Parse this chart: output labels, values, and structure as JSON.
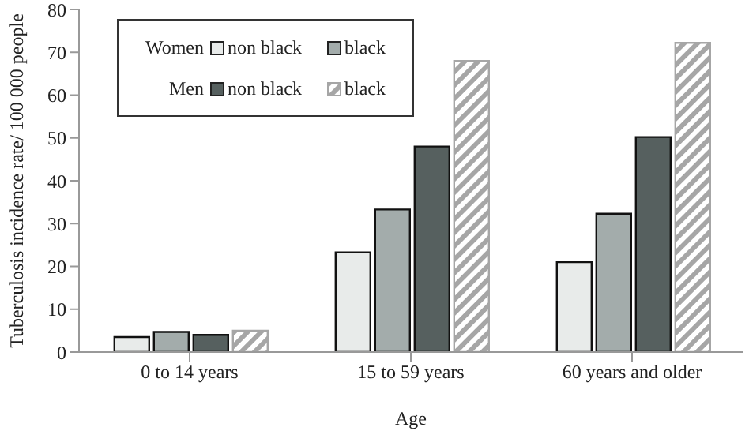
{
  "chart_data": {
    "type": "bar",
    "xlabel": "Age",
    "ylabel": "Tuberculosis incidence rate/ 100 000 people",
    "categories": [
      "0 to 14 years",
      "15 to 59 years",
      "60 years and older"
    ],
    "series": [
      {
        "name": "non black",
        "color": "#e8ebea",
        "values": [
          3.5,
          23.3,
          21
        ]
      },
      {
        "name": "black",
        "color": "#a3acab",
        "values": [
          4.7,
          33.3,
          32.3
        ]
      },
      {
        "name": "non black",
        "color": "#56605f",
        "values": [
          4,
          48,
          50.2
        ]
      },
      {
        "name": "black",
        "color": "#a6a6a6",
        "values": [
          5,
          68,
          72.2
        ]
      }
    ],
    "annotations": [
      "Women",
      "Men"
    ],
    "ylim": [
      0,
      80
    ],
    "yticks": [
      0,
      10,
      20,
      30,
      40,
      50,
      60,
      70,
      80
    ],
    "grid": false,
    "legend": "top left"
  }
}
